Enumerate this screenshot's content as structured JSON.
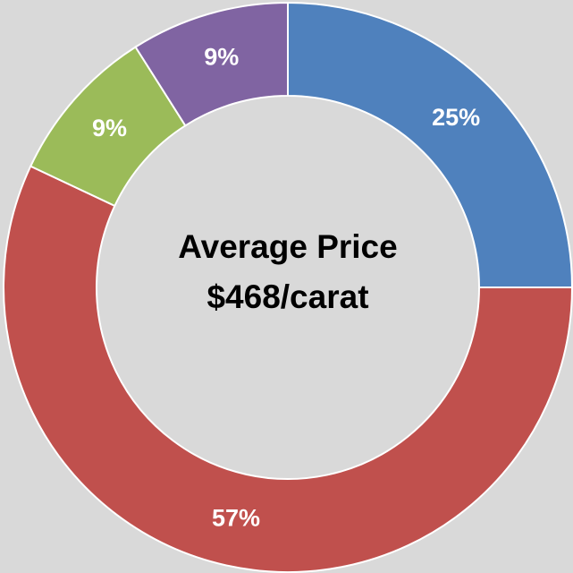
{
  "chart_data": {
    "type": "donut",
    "values": [
      25,
      57,
      9,
      9
    ],
    "value_labels": [
      "25%",
      "57%",
      "9%",
      "9%"
    ],
    "colors": [
      "#4f81bd",
      "#c0504d",
      "#9bbb59",
      "#8064a2"
    ],
    "center_label": [
      "Average Price",
      "$468/carat"
    ]
  }
}
